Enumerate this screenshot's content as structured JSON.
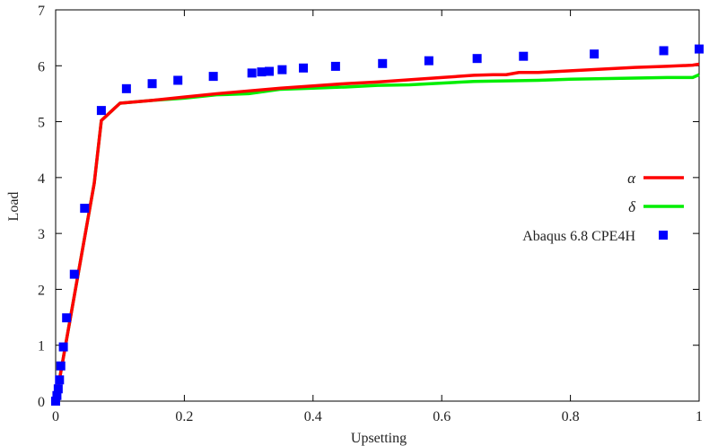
{
  "chart_data": {
    "type": "line",
    "title": "",
    "xlabel": "Upsetting",
    "ylabel": "Load",
    "xlim": [
      0,
      1
    ],
    "ylim": [
      0,
      7
    ],
    "xticks": [
      0,
      0.2,
      0.4,
      0.6,
      0.8,
      1
    ],
    "xtick_labels": [
      "0",
      "0.2",
      "0.4",
      "0.6",
      "0.8",
      "1"
    ],
    "yticks": [
      0,
      1,
      2,
      3,
      4,
      5,
      6,
      7
    ],
    "ytick_labels": [
      "0",
      "1",
      "2",
      "3",
      "4",
      "5",
      "6",
      "7"
    ],
    "grid": false,
    "legend_position": "right",
    "series": [
      {
        "name": "α",
        "kind": "line",
        "color": "#ff0000",
        "x": [
          0,
          0.02,
          0.04,
          0.06,
          0.071,
          0.1,
          0.15,
          0.2,
          0.25,
          0.3,
          0.35,
          0.4,
          0.45,
          0.5,
          0.55,
          0.6,
          0.65,
          0.68,
          0.7,
          0.72,
          0.75,
          0.8,
          0.85,
          0.9,
          0.95,
          0.99,
          1.0
        ],
        "y": [
          0,
          1.3,
          2.6,
          3.9,
          5.02,
          5.33,
          5.38,
          5.44,
          5.5,
          5.55,
          5.6,
          5.64,
          5.68,
          5.71,
          5.75,
          5.79,
          5.83,
          5.84,
          5.84,
          5.88,
          5.88,
          5.91,
          5.94,
          5.97,
          5.99,
          6.01,
          6.03
        ]
      },
      {
        "name": "δ",
        "kind": "line",
        "color": "#00ee00",
        "x": [
          0,
          0.02,
          0.04,
          0.06,
          0.071,
          0.1,
          0.15,
          0.2,
          0.25,
          0.3,
          0.35,
          0.4,
          0.45,
          0.5,
          0.55,
          0.6,
          0.65,
          0.7,
          0.75,
          0.8,
          0.85,
          0.9,
          0.95,
          0.99,
          1.0
        ],
        "y": [
          0,
          1.3,
          2.6,
          3.9,
          5.02,
          5.33,
          5.38,
          5.42,
          5.48,
          5.5,
          5.58,
          5.6,
          5.62,
          5.65,
          5.66,
          5.69,
          5.72,
          5.73,
          5.74,
          5.76,
          5.77,
          5.78,
          5.79,
          5.79,
          5.84
        ]
      },
      {
        "name": "Abaqus 6.8 CPE4H",
        "kind": "scatter",
        "color": "#0000ff",
        "x": [
          0.0,
          0.002,
          0.004,
          0.006,
          0.008,
          0.012,
          0.017,
          0.029,
          0.045,
          0.071,
          0.11,
          0.15,
          0.19,
          0.245,
          0.305,
          0.32,
          0.332,
          0.352,
          0.385,
          0.435,
          0.508,
          0.58,
          0.655,
          0.727,
          0.837,
          0.945,
          1.0
        ],
        "y": [
          0.0,
          0.1,
          0.22,
          0.38,
          0.63,
          0.97,
          1.49,
          2.27,
          3.45,
          5.2,
          5.59,
          5.68,
          5.74,
          5.81,
          5.87,
          5.89,
          5.9,
          5.93,
          5.96,
          5.99,
          6.04,
          6.09,
          6.13,
          6.17,
          6.21,
          6.27,
          6.3
        ]
      }
    ]
  }
}
